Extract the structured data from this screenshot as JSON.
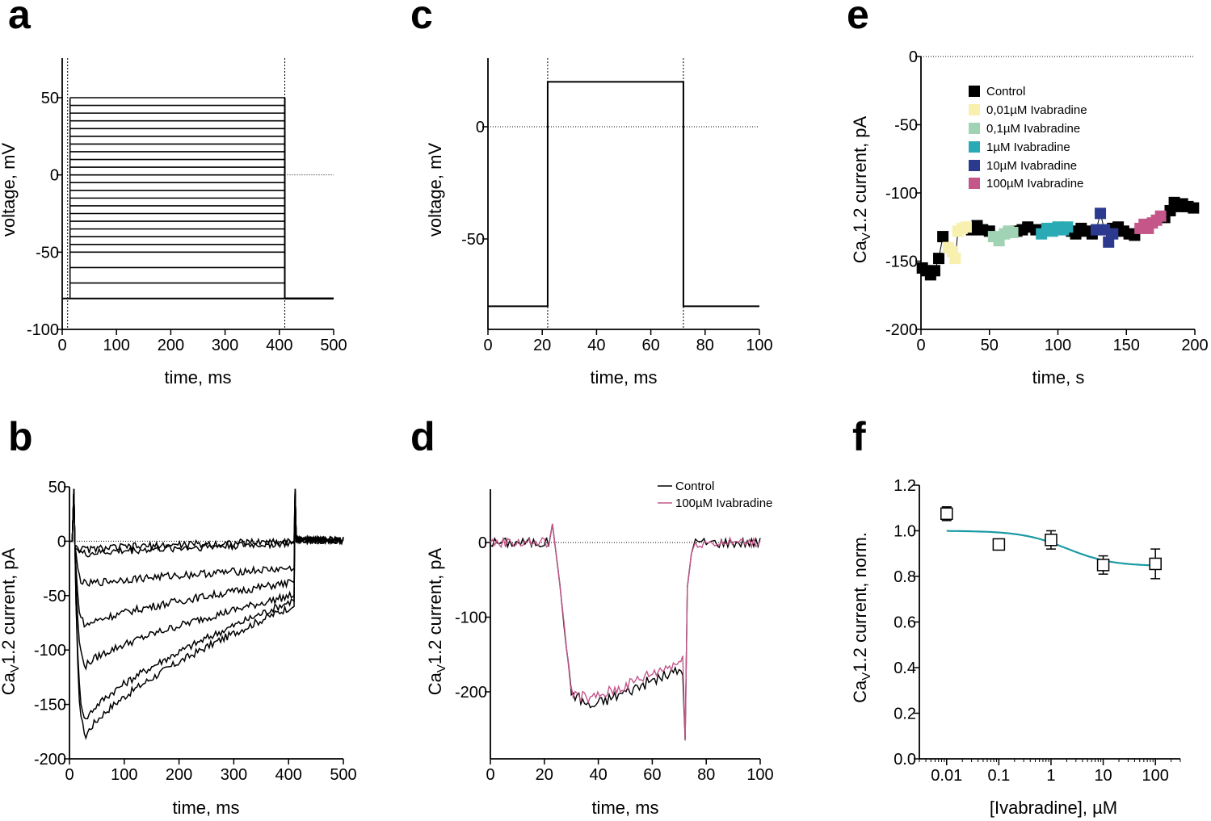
{
  "colors": {
    "black": "#000000",
    "pink": "#c4568a",
    "lightyellow": "#f7f0ae",
    "lightgreen": "#9fd3b4",
    "teal": "#2aaab5",
    "navy": "#2b3a8f",
    "magenta": "#c4568a",
    "fitline": "#1a9aa4"
  },
  "chart_data": [
    {
      "panel": "a",
      "type": "line",
      "xlabel": "time, ms",
      "ylabel": "voltage, mV",
      "xlim": [
        0,
        500
      ],
      "ylim": [
        -100,
        70
      ],
      "xticks": [
        "0",
        "100",
        "200",
        "300",
        "400",
        "500"
      ],
      "yticks": [
        "-100",
        "-50",
        "0",
        "50"
      ],
      "holding_mV": -80,
      "step_start_ms": 10,
      "step_end_ms": 410,
      "step_levels_mV": [
        -70,
        -60,
        -50,
        -45,
        -40,
        -35,
        -30,
        -25,
        -20,
        -15,
        -10,
        -5,
        0,
        5,
        10,
        15,
        20,
        25,
        30,
        35,
        40,
        45,
        50
      ]
    },
    {
      "panel": "b",
      "type": "line",
      "xlabel": "time, ms",
      "ylabel": "CaV1.2 current, pA",
      "xlim": [
        0,
        500
      ],
      "ylim": [
        -200,
        50
      ],
      "xticks": [
        "0",
        "100",
        "200",
        "300",
        "400",
        "500"
      ],
      "yticks": [
        "-200",
        "-150",
        "-100",
        "-50",
        "0",
        "50"
      ],
      "series": [
        {
          "peak_pA": -180,
          "end_pA": -60
        },
        {
          "peak_pA": -165,
          "end_pA": -55
        },
        {
          "peak_pA": -115,
          "end_pA": -50
        },
        {
          "peak_pA": -78,
          "end_pA": -38
        },
        {
          "peak_pA": -40,
          "end_pA": -25
        },
        {
          "peak_pA": -12,
          "end_pA": -2
        },
        {
          "peak_pA": -8,
          "end_pA": 0
        }
      ]
    },
    {
      "panel": "c",
      "type": "line",
      "xlabel": "time, ms",
      "ylabel": "voltage, mV",
      "xlim": [
        0,
        100
      ],
      "ylim": [
        -90,
        30
      ],
      "xticks": [
        "0",
        "20",
        "40",
        "60",
        "80",
        "100"
      ],
      "yticks": [
        "-50",
        "0"
      ],
      "holding_mV": -80,
      "step_mV": 20,
      "step_start_ms": 22,
      "step_end_ms": 72
    },
    {
      "panel": "d",
      "type": "line",
      "xlabel": "time, ms",
      "ylabel": "CaV1.2 current, pA",
      "xlim": [
        0,
        100
      ],
      "ylim": [
        -290,
        70
      ],
      "xticks": [
        "0",
        "20",
        "40",
        "60",
        "80",
        "100"
      ],
      "yticks": [
        "-200",
        "-100",
        "0"
      ],
      "legend": [
        "Control",
        "100µM Ivabradine"
      ],
      "series": [
        {
          "name": "Control",
          "plateau_pA": [
            [
              30,
              -200
            ],
            [
              37,
              -220
            ],
            [
              50,
              -200
            ],
            [
              60,
              -185
            ],
            [
              71,
              -170
            ]
          ]
        },
        {
          "name": "100µM Ivabradine",
          "plateau_pA": [
            [
              30,
              -200
            ],
            [
              37,
              -210
            ],
            [
              50,
              -192
            ],
            [
              60,
              -175
            ],
            [
              71,
              -158
            ]
          ]
        }
      ]
    },
    {
      "panel": "e",
      "type": "scatter",
      "xlabel": "time, s",
      "ylabel": "CaV1.2 current, pA",
      "xlim": [
        0,
        200
      ],
      "ylim": [
        -200,
        0
      ],
      "xticks": [
        "0",
        "50",
        "100",
        "150",
        "200"
      ],
      "yticks": [
        "-200",
        "-150",
        "-100",
        "-50",
        "0"
      ],
      "legend": [
        "Control",
        "0,01µM Ivabradine",
        "0,1µM Ivabradine",
        "1µM Ivabradine",
        "10µM Ivabradine",
        "100µM Ivabradine"
      ],
      "series": [
        {
          "name": "Control",
          "color": "#000000",
          "points": [
            [
              1,
              -155
            ],
            [
              4,
              -157
            ],
            [
              7,
              -160
            ],
            [
              10,
              -157
            ],
            [
              13,
              -148
            ],
            [
              16,
              -132
            ],
            [
              37,
              -127
            ],
            [
              41,
              -124
            ],
            [
              45,
              -127
            ],
            [
              50,
              -128
            ],
            [
              70,
              -128
            ],
            [
              74,
              -127
            ],
            [
              78,
              -125
            ],
            [
              84,
              -127
            ],
            [
              110,
              -128
            ],
            [
              113,
              -130
            ],
            [
              117,
              -126
            ],
            [
              121,
              -128
            ],
            [
              125,
              -130
            ],
            [
              140,
              -126
            ],
            [
              144,
              -125
            ],
            [
              148,
              -128
            ],
            [
              152,
              -130
            ],
            [
              156,
              -131
            ],
            [
              178,
              -118
            ],
            [
              182,
              -113
            ],
            [
              185,
              -107
            ],
            [
              188,
              -110
            ],
            [
              191,
              -108
            ],
            [
              195,
              -110
            ],
            [
              199,
              -111
            ]
          ]
        },
        {
          "name": "0,01µM Ivabradine",
          "color": "#f7f0ae",
          "points": [
            [
              20,
              -140
            ],
            [
              23,
              -143
            ],
            [
              25,
              -148
            ],
            [
              27,
              -128
            ],
            [
              30,
              -126
            ],
            [
              33,
              -125
            ]
          ]
        },
        {
          "name": "0,1µM Ivabradine",
          "color": "#9fd3b4",
          "points": [
            [
              53,
              -132
            ],
            [
              57,
              -135
            ],
            [
              61,
              -130
            ],
            [
              64,
              -128
            ],
            [
              67,
              -129
            ]
          ]
        },
        {
          "name": "1µM Ivabradine",
          "color": "#2aaab5",
          "points": [
            [
              88,
              -130
            ],
            [
              92,
              -126
            ],
            [
              96,
              -128
            ],
            [
              100,
              -125
            ],
            [
              104,
              -127
            ],
            [
              107,
              -125
            ]
          ]
        },
        {
          "name": "10µM Ivabradine",
          "color": "#2b3a8f",
          "points": [
            [
              128,
              -127
            ],
            [
              131,
              -115
            ],
            [
              134,
              -127
            ],
            [
              137,
              -136
            ],
            [
              140,
              -130
            ]
          ]
        },
        {
          "name": "100µM Ivabradine",
          "color": "#c4568a",
          "points": [
            [
              160,
              -126
            ],
            [
              163,
              -123
            ],
            [
              166,
              -126
            ],
            [
              169,
              -122
            ],
            [
              172,
              -120
            ],
            [
              175,
              -117
            ]
          ]
        }
      ]
    },
    {
      "panel": "f",
      "type": "scatter",
      "xlabel": "[Ivabradine], µM",
      "ylabel": "CaV1.2 current, norm.",
      "xscale": "log",
      "xlim": [
        0.003,
        300
      ],
      "ylim": [
        0,
        1.2
      ],
      "xticks": [
        "0.01",
        "0.1",
        "1",
        "10",
        "100"
      ],
      "yticks": [
        "0.0",
        "0.2",
        "0.4",
        "0.6",
        "0.8",
        "1.0",
        "1.2"
      ],
      "points": [
        {
          "x": 0.01,
          "y": 1.075,
          "err": 0.03
        },
        {
          "x": 0.1,
          "y": 0.94,
          "err": 0.0
        },
        {
          "x": 1,
          "y": 0.96,
          "err": 0.04
        },
        {
          "x": 10,
          "y": 0.85,
          "err": 0.04
        },
        {
          "x": 100,
          "y": 0.855,
          "err": 0.065
        }
      ],
      "fit": {
        "top": 1.0,
        "bottom": 0.845,
        "ic50": 2.0,
        "hill": 1.0
      }
    }
  ],
  "panel_labels": [
    "a",
    "b",
    "c",
    "d",
    "e",
    "f"
  ]
}
